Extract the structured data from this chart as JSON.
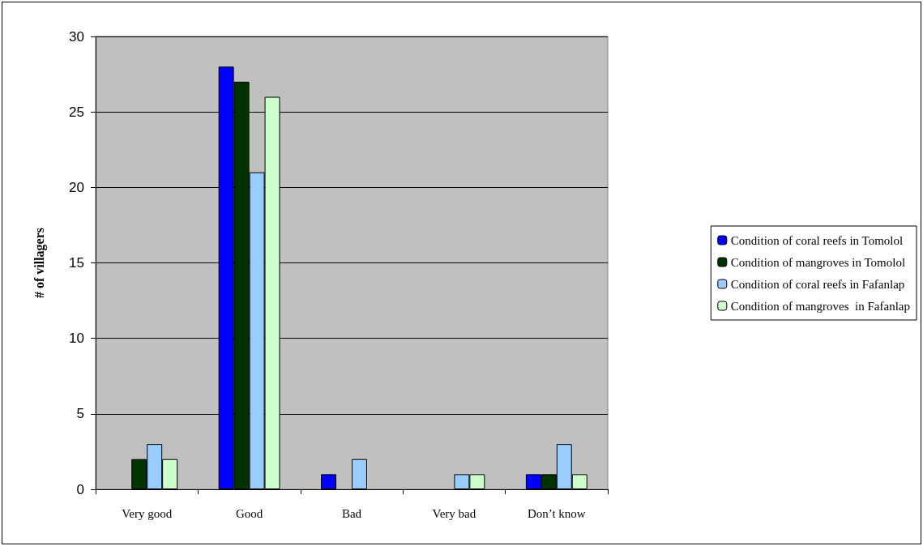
{
  "chart_data": {
    "type": "bar",
    "ylabel": "# of villagers",
    "categories": [
      "Very good",
      "Good",
      "Bad",
      "Very bad",
      "Don’t know"
    ],
    "series": [
      {
        "name": "Condition of coral reefs in Tomolol",
        "color": "#0000ff",
        "values": [
          0,
          28,
          1,
          0,
          1
        ]
      },
      {
        "name": "Condition of mangroves in Tomolol",
        "color": "#003300",
        "values": [
          2,
          27,
          0,
          0,
          1
        ]
      },
      {
        "name": "Condition of coral reefs in Fafanlap",
        "color": "#99ccff",
        "values": [
          3,
          21,
          2,
          1,
          3
        ]
      },
      {
        "name": "Condition of mangroves  in Fafanlap",
        "color": "#ccffcc",
        "values": [
          2,
          26,
          0,
          1,
          1
        ]
      }
    ],
    "ylim": [
      0,
      30
    ],
    "yticks": [
      0,
      5,
      10,
      15,
      20,
      25,
      30
    ],
    "grid": "y",
    "legend": "right"
  }
}
